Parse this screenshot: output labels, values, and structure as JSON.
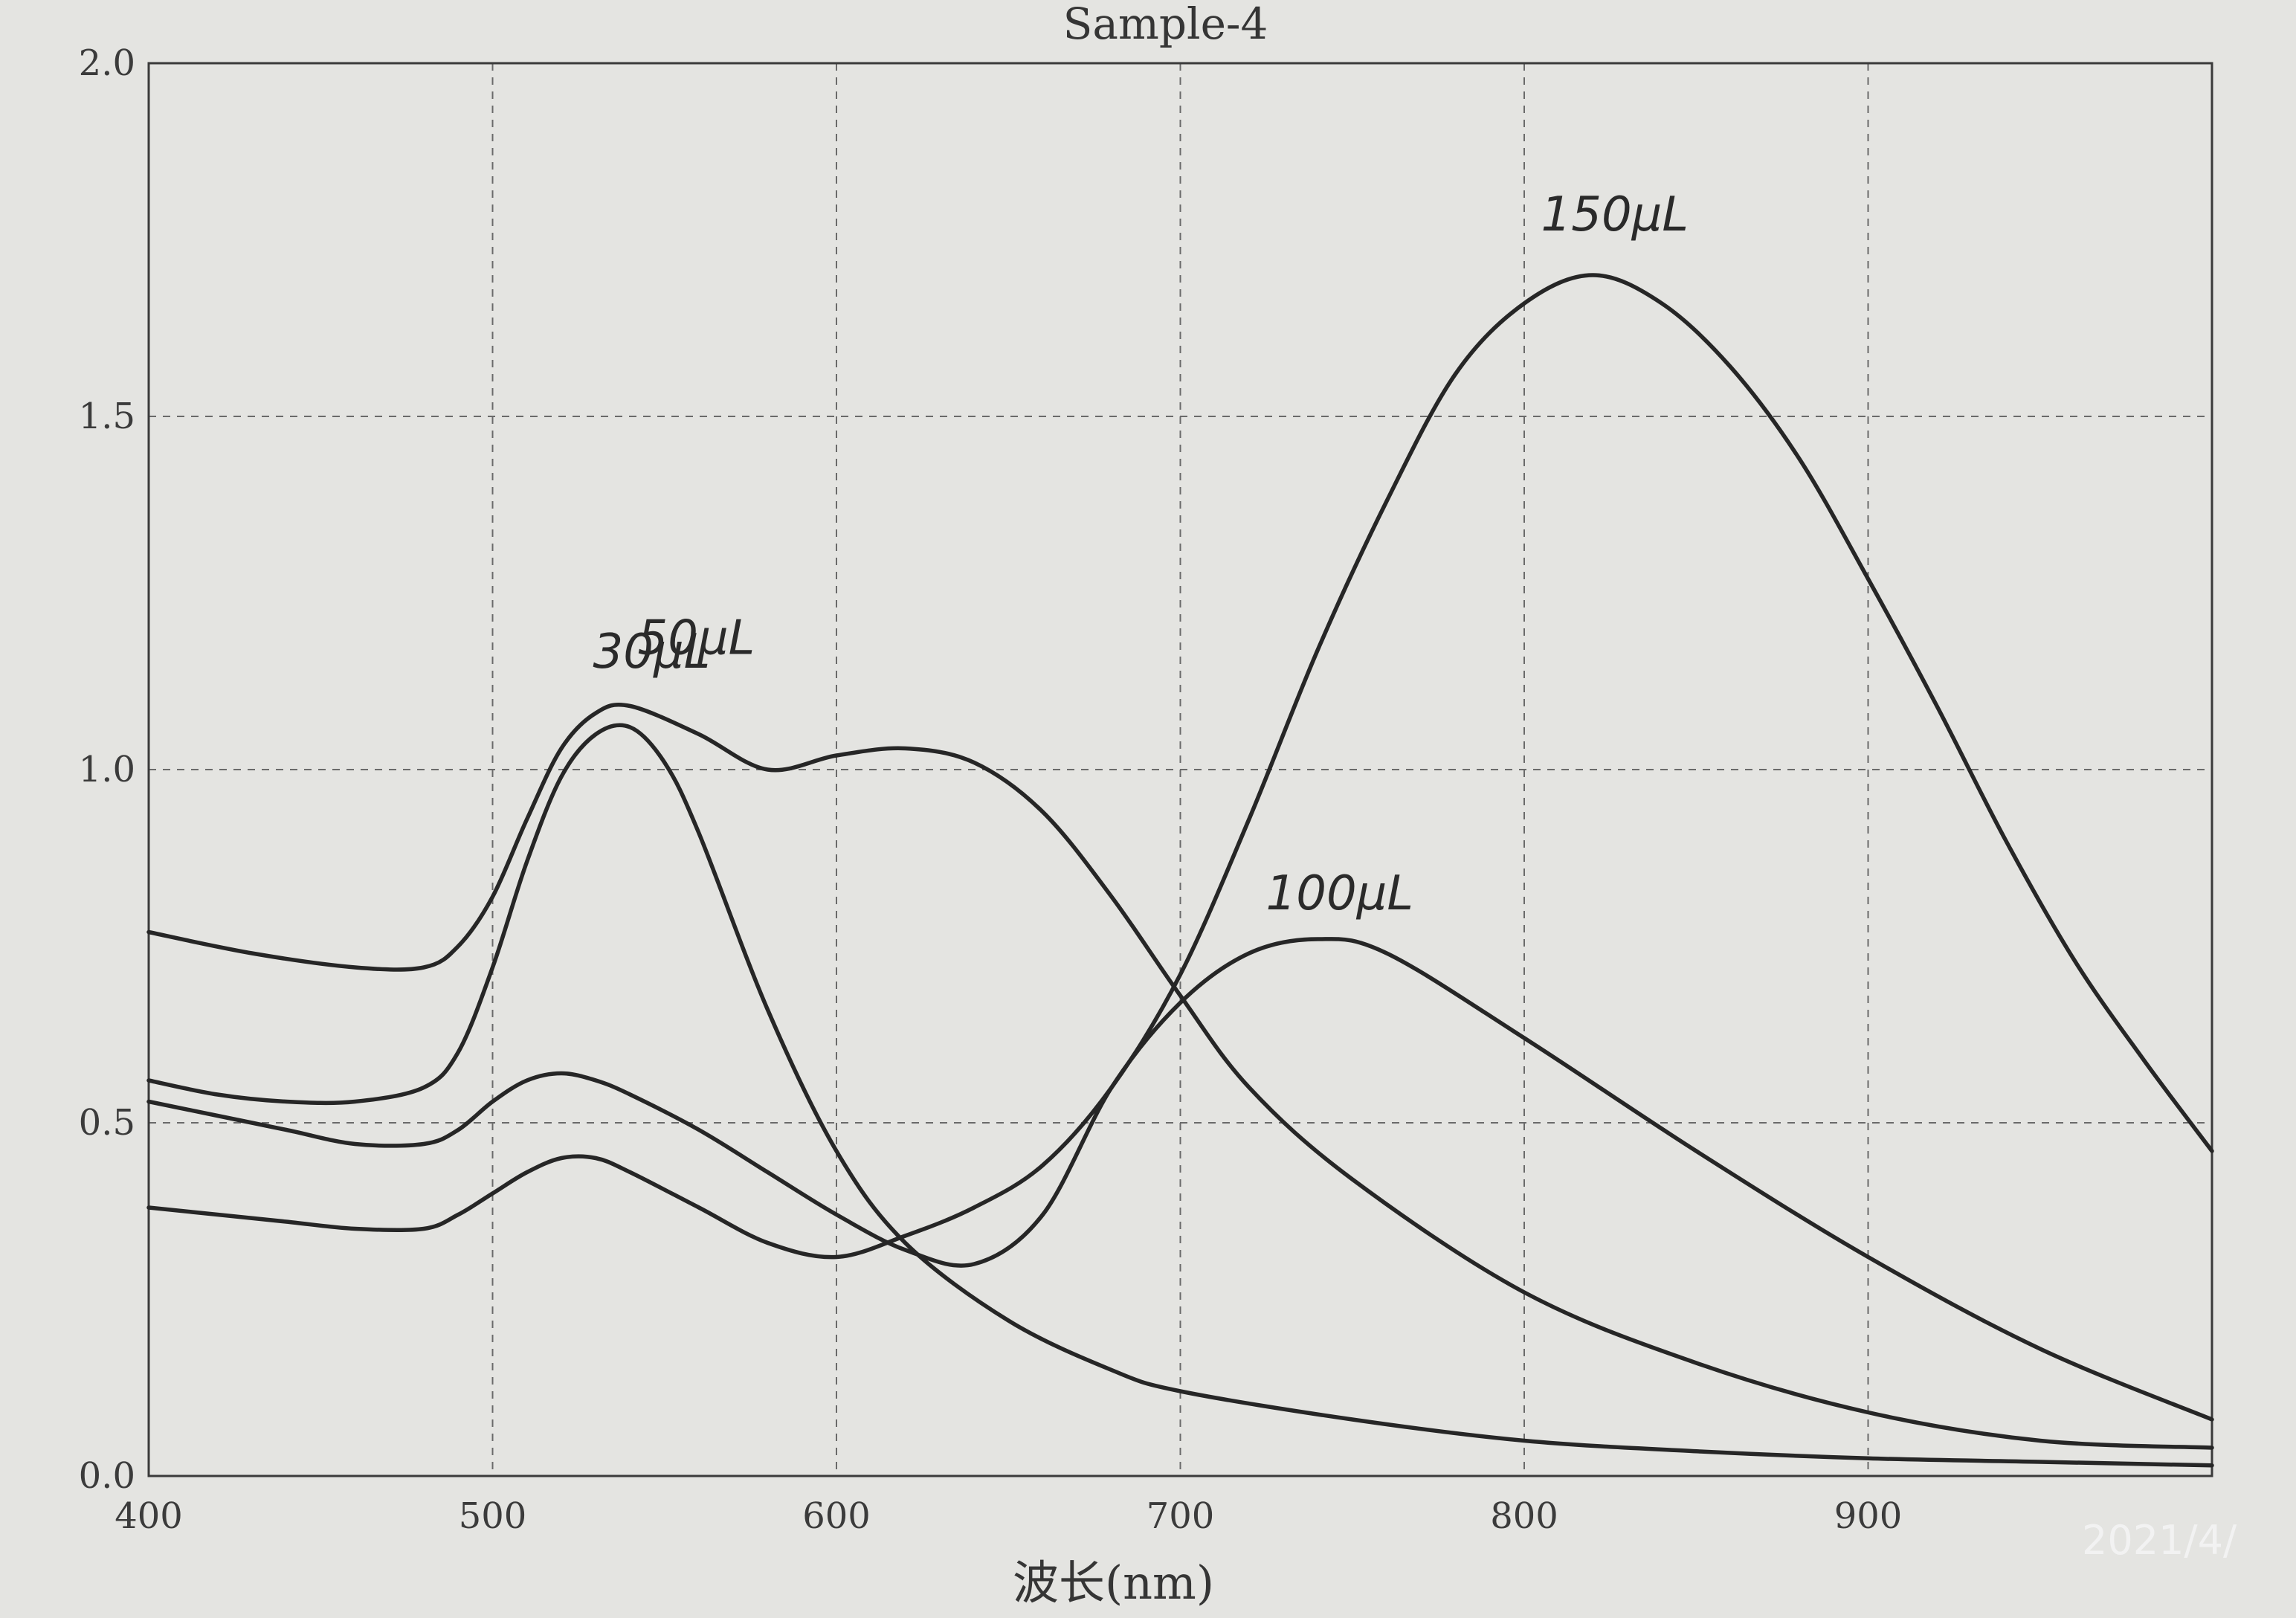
{
  "chart_data": {
    "type": "line",
    "title": "Sample-4",
    "xlabel": "波长(nm)",
    "ylabel": "",
    "xlim": [
      400,
      1000
    ],
    "ylim": [
      0.0,
      2.0
    ],
    "xticks": [
      400,
      500,
      600,
      700,
      800,
      900
    ],
    "xtick_labels": [
      "400",
      "500",
      "600",
      "700",
      "800",
      "900"
    ],
    "yticks": [
      0.0,
      0.5,
      1.0,
      1.5,
      2.0
    ],
    "ytick_labels": [
      "0.0",
      "0.5",
      "1.0",
      "1.5",
      "2.0"
    ],
    "grid": true,
    "series": [
      {
        "name": "30μL",
        "x": [
          400,
          420,
          440,
          460,
          480,
          490,
          500,
          510,
          520,
          530,
          540,
          550,
          560,
          580,
          600,
          620,
          650,
          680,
          700,
          750,
          800,
          850,
          900,
          950,
          1000
        ],
        "y": [
          0.56,
          0.54,
          0.53,
          0.53,
          0.55,
          0.6,
          0.72,
          0.87,
          0.99,
          1.05,
          1.06,
          1.01,
          0.91,
          0.66,
          0.46,
          0.33,
          0.22,
          0.15,
          0.12,
          0.08,
          0.05,
          0.035,
          0.025,
          0.02,
          0.015
        ]
      },
      {
        "name": "50μL",
        "x": [
          400,
          430,
          460,
          480,
          490,
          500,
          510,
          520,
          530,
          540,
          560,
          580,
          600,
          620,
          640,
          660,
          680,
          700,
          720,
          750,
          800,
          850,
          900,
          950,
          1000
        ],
        "y": [
          0.77,
          0.74,
          0.72,
          0.72,
          0.75,
          0.82,
          0.93,
          1.03,
          1.08,
          1.09,
          1.05,
          1.0,
          1.02,
          1.03,
          1.01,
          0.94,
          0.82,
          0.68,
          0.55,
          0.42,
          0.26,
          0.16,
          0.09,
          0.05,
          0.04
        ]
      },
      {
        "name": "100μL",
        "x": [
          400,
          420,
          440,
          460,
          480,
          490,
          500,
          510,
          520,
          530,
          540,
          560,
          580,
          600,
          620,
          640,
          660,
          680,
          700,
          720,
          740,
          760,
          800,
          850,
          900,
          950,
          1000
        ],
        "y": [
          0.53,
          0.51,
          0.49,
          0.47,
          0.47,
          0.49,
          0.53,
          0.56,
          0.57,
          0.56,
          0.54,
          0.49,
          0.43,
          0.37,
          0.32,
          0.3,
          0.37,
          0.55,
          0.67,
          0.74,
          0.76,
          0.74,
          0.62,
          0.46,
          0.31,
          0.18,
          0.08
        ]
      },
      {
        "name": "150μL",
        "x": [
          400,
          420,
          440,
          460,
          480,
          490,
          500,
          510,
          520,
          530,
          540,
          560,
          580,
          600,
          620,
          640,
          660,
          680,
          700,
          720,
          740,
          760,
          780,
          800,
          820,
          840,
          860,
          880,
          900,
          920,
          940,
          960,
          980,
          1000
        ],
        "y": [
          0.38,
          0.37,
          0.36,
          0.35,
          0.35,
          0.37,
          0.4,
          0.43,
          0.45,
          0.45,
          0.43,
          0.38,
          0.33,
          0.31,
          0.34,
          0.38,
          0.44,
          0.55,
          0.71,
          0.93,
          1.17,
          1.38,
          1.56,
          1.66,
          1.7,
          1.66,
          1.57,
          1.44,
          1.27,
          1.09,
          0.9,
          0.73,
          0.59,
          0.46
        ]
      }
    ]
  },
  "stamp": "2021/4/"
}
